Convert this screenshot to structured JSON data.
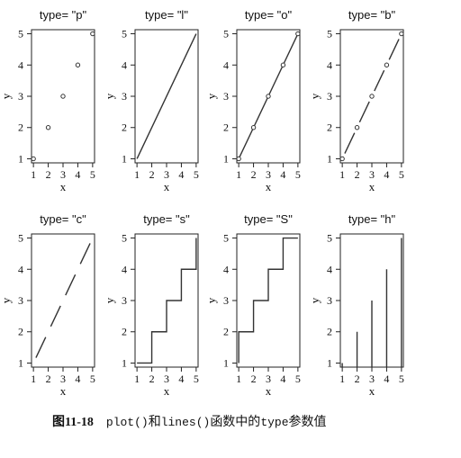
{
  "chart_data": [
    {
      "type": "line",
      "plot_type": "p",
      "title": "type= \"p\"",
      "xlabel": "x",
      "ylabel": "y",
      "x": [
        1,
        2,
        3,
        4,
        5
      ],
      "y": [
        1,
        2,
        3,
        4,
        5
      ],
      "xticks": [
        "1",
        "2",
        "3",
        "4",
        "5"
      ],
      "yticks": [
        "1",
        "2",
        "3",
        "4",
        "5"
      ],
      "markers": true,
      "lines": "none"
    },
    {
      "type": "line",
      "plot_type": "l",
      "title": "type= \"l\"",
      "xlabel": "x",
      "ylabel": "y",
      "x": [
        1,
        2,
        3,
        4,
        5
      ],
      "y": [
        1,
        2,
        3,
        4,
        5
      ],
      "xticks": [
        "1",
        "2",
        "3",
        "4",
        "5"
      ],
      "yticks": [
        "1",
        "2",
        "3",
        "4",
        "5"
      ],
      "markers": false,
      "lines": "solid"
    },
    {
      "type": "line",
      "plot_type": "o",
      "title": "type= \"o\"",
      "xlabel": "x",
      "ylabel": "y",
      "x": [
        1,
        2,
        3,
        4,
        5
      ],
      "y": [
        1,
        2,
        3,
        4,
        5
      ],
      "xticks": [
        "1",
        "2",
        "3",
        "4",
        "5"
      ],
      "yticks": [
        "1",
        "2",
        "3",
        "4",
        "5"
      ],
      "markers": true,
      "lines": "solid-overplotted"
    },
    {
      "type": "line",
      "plot_type": "b",
      "title": "type= \"b\"",
      "xlabel": "x",
      "ylabel": "y",
      "x": [
        1,
        2,
        3,
        4,
        5
      ],
      "y": [
        1,
        2,
        3,
        4,
        5
      ],
      "xticks": [
        "1",
        "2",
        "3",
        "4",
        "5"
      ],
      "yticks": [
        "1",
        "2",
        "3",
        "4",
        "5"
      ],
      "markers": true,
      "lines": "solid-with-gaps"
    },
    {
      "type": "line",
      "plot_type": "c",
      "title": "type= \"c\"",
      "xlabel": "x",
      "ylabel": "y",
      "x": [
        1,
        2,
        3,
        4,
        5
      ],
      "y": [
        1,
        2,
        3,
        4,
        5
      ],
      "xticks": [
        "1",
        "2",
        "3",
        "4",
        "5"
      ],
      "yticks": [
        "1",
        "2",
        "3",
        "4",
        "5"
      ],
      "markers": false,
      "lines": "lines-with-gaps"
    },
    {
      "type": "line",
      "plot_type": "s",
      "title": "type= \"s\"",
      "xlabel": "x",
      "ylabel": "y",
      "x": [
        1,
        2,
        3,
        4,
        5
      ],
      "y": [
        1,
        2,
        3,
        4,
        5
      ],
      "xticks": [
        "1",
        "2",
        "3",
        "4",
        "5"
      ],
      "yticks": [
        "1",
        "2",
        "3",
        "4",
        "5"
      ],
      "markers": false,
      "lines": "step-horizontal-first"
    },
    {
      "type": "line",
      "plot_type": "S",
      "title": "type= \"S\"",
      "xlabel": "x",
      "ylabel": "y",
      "x": [
        1,
        2,
        3,
        4,
        5
      ],
      "y": [
        1,
        2,
        3,
        4,
        5
      ],
      "xticks": [
        "1",
        "2",
        "3",
        "4",
        "5"
      ],
      "yticks": [
        "1",
        "2",
        "3",
        "4",
        "5"
      ],
      "markers": false,
      "lines": "step-vertical-first"
    },
    {
      "type": "bar",
      "plot_type": "h",
      "title": "type= \"h\"",
      "xlabel": "x",
      "ylabel": "y",
      "x": [
        1,
        2,
        3,
        4,
        5
      ],
      "y": [
        1,
        2,
        3,
        4,
        5
      ],
      "xticks": [
        "1",
        "2",
        "3",
        "4",
        "5"
      ],
      "yticks": [
        "1",
        "2",
        "3",
        "4",
        "5"
      ],
      "markers": false,
      "lines": "histogram-spikes"
    }
  ],
  "caption": {
    "number": "图11-18",
    "code1": "plot()",
    "mid": "和",
    "code2": "lines()",
    "mid2": "函数中的",
    "code3": "type",
    "tail": "参数值"
  }
}
